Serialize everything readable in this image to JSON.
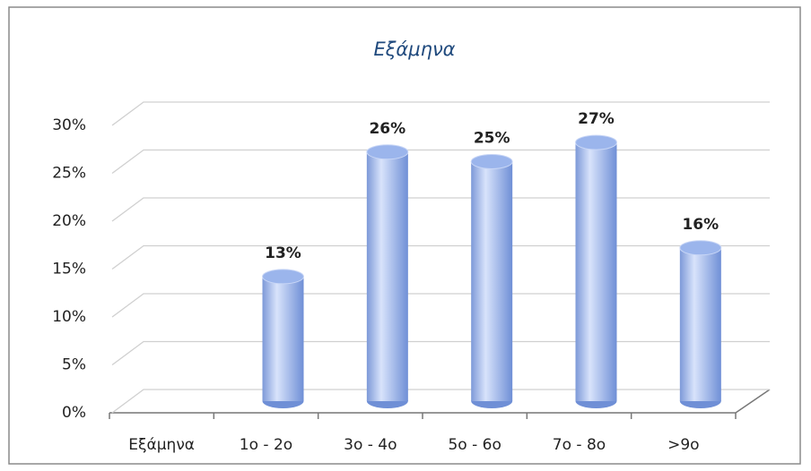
{
  "chart_data": {
    "type": "bar",
    "title": "Εξάμηνα",
    "categories": [
      "Εξάμηνα",
      "1ο - 2ο",
      "3ο - 4ο",
      "5ο - 6ο",
      "7ο - 8ο",
      ">9ο"
    ],
    "values": [
      null,
      13,
      26,
      25,
      27,
      16
    ],
    "value_labels": [
      null,
      "13%",
      "26%",
      "25%",
      "27%",
      "16%"
    ],
    "color": "#9bb5ec",
    "ylim": [
      0,
      30
    ],
    "yticks": [
      {
        "value": 0,
        "label": "0%"
      },
      {
        "value": 5,
        "label": "5%"
      },
      {
        "value": 10,
        "label": "10%"
      },
      {
        "value": 15,
        "label": "15%"
      },
      {
        "value": 20,
        "label": "20%"
      },
      {
        "value": 25,
        "label": "25%"
      },
      {
        "value": 30,
        "label": "30%"
      }
    ],
    "grid": true
  }
}
